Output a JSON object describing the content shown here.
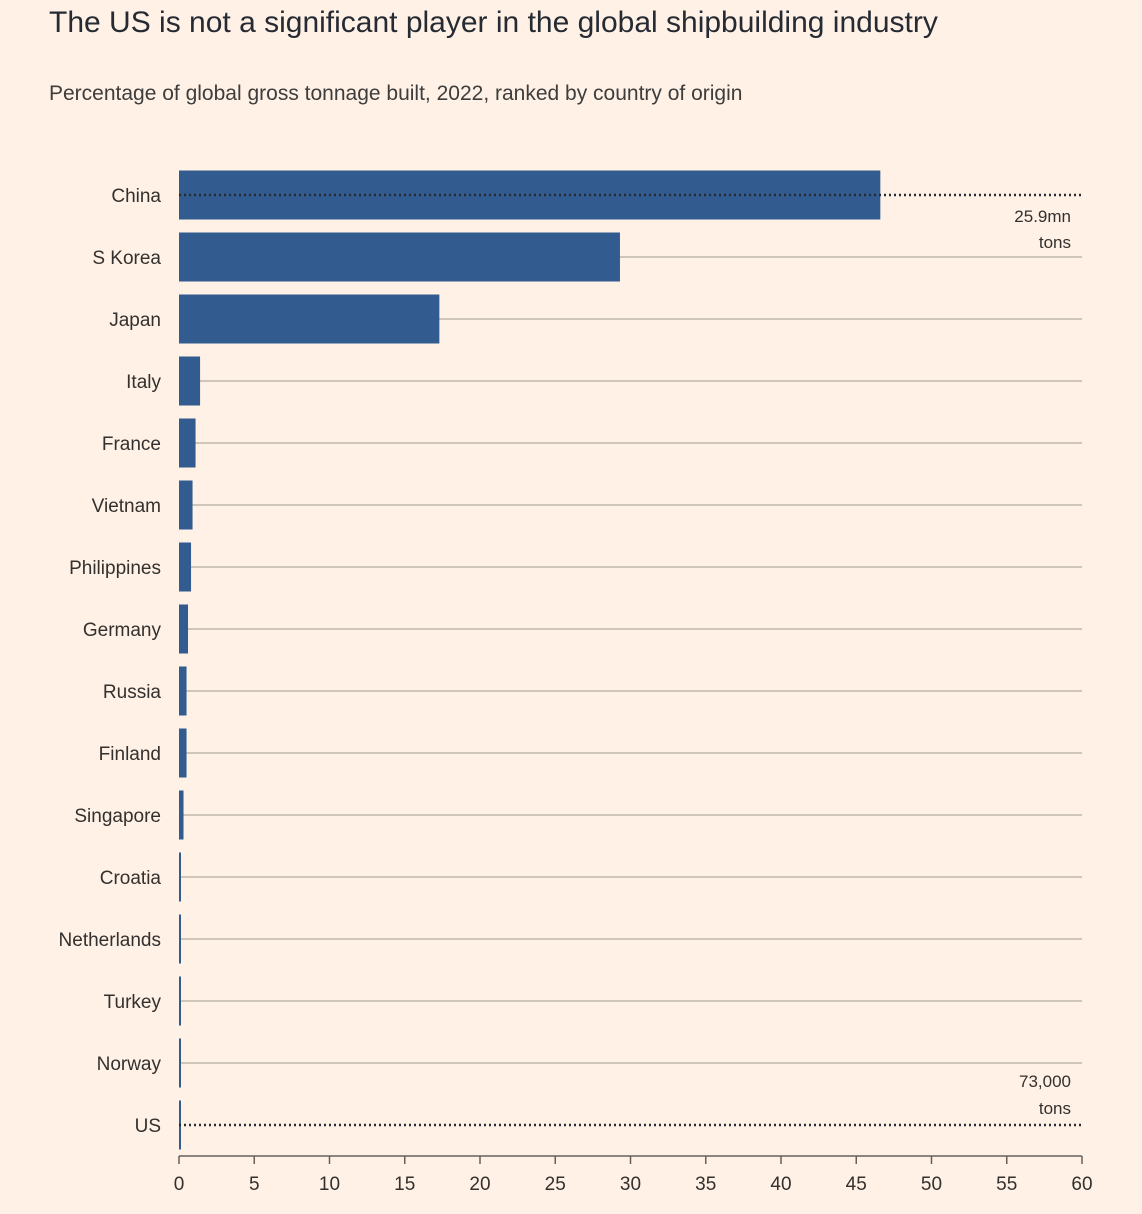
{
  "title": "The US is not a significant player in the global shipbuilding industry",
  "subtitle": "Percentage of global gross tonnage built, 2022, ranked by country of origin",
  "colors": {
    "background": "#fff1e5",
    "bar": "#325c8f",
    "gridline": "#cec6b9",
    "axis": "#66605c",
    "reference_line": "#262a33"
  },
  "chart_data": {
    "type": "bar",
    "orientation": "horizontal",
    "categories": [
      "China",
      "S Korea",
      "Japan",
      "Italy",
      "France",
      "Vietnam",
      "Philippines",
      "Germany",
      "Russia",
      "Finland",
      "Singapore",
      "Croatia",
      "Netherlands",
      "Turkey",
      "Norway",
      "US"
    ],
    "values": [
      46.6,
      29.3,
      17.3,
      1.4,
      1.1,
      0.9,
      0.8,
      0.6,
      0.5,
      0.5,
      0.3,
      0.1,
      0.1,
      0.1,
      0.1,
      0.1
    ],
    "xlim": [
      0,
      60
    ],
    "xticks": [
      0,
      5,
      10,
      15,
      20,
      25,
      30,
      35,
      40,
      45,
      50,
      55,
      60
    ],
    "grid": true,
    "annotations": [
      {
        "category": "China",
        "line1": "25.9mn",
        "line2": "tons",
        "style": "dotted-line"
      },
      {
        "category": "US",
        "line1": "73,000",
        "line2": "tons",
        "style": "dotted-line"
      }
    ]
  }
}
